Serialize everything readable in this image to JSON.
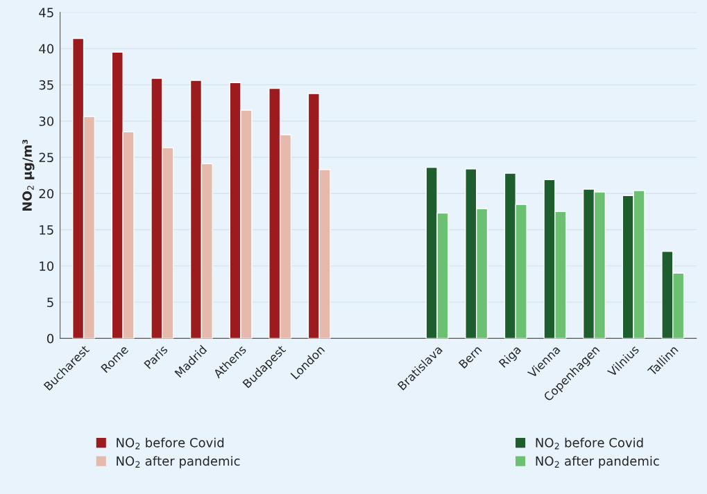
{
  "chart_data": {
    "type": "bar",
    "ylabel": "NO$_{2}$ µg/m³",
    "categories": [
      "Bucharest",
      "Rome",
      "Paris",
      "Madrid",
      "Athens",
      "Budapest",
      "London",
      null,
      null,
      "Bratislava",
      "Bern",
      "Riga",
      "Vienna",
      "Copenhagen",
      "Vilnius",
      "Tallinn"
    ],
    "series": [
      {
        "name": "NO$_{2}$ before Covid",
        "color": "#9b1b1f",
        "values": [
          41.4,
          39.5,
          35.9,
          35.6,
          35.3,
          34.5,
          33.8,
          null,
          null,
          null,
          null,
          null,
          null,
          null,
          null,
          null
        ]
      },
      {
        "name": "NO$_{2}$ after pandemic",
        "color": "#e6b9ad",
        "values": [
          30.6,
          28.5,
          26.3,
          24.1,
          31.5,
          28.1,
          23.3,
          null,
          null,
          null,
          null,
          null,
          null,
          null,
          null,
          null
        ]
      },
      {
        "name": "NO$_{2}$ before Covid",
        "color": "#1e5e2e",
        "values": [
          null,
          null,
          null,
          null,
          null,
          null,
          null,
          null,
          null,
          23.6,
          23.4,
          22.8,
          21.9,
          20.6,
          19.7,
          12.0
        ]
      },
      {
        "name": "NO$_{2}$ after pandemic",
        "color": "#6cc071",
        "values": [
          null,
          null,
          null,
          null,
          null,
          null,
          null,
          null,
          null,
          17.3,
          17.9,
          18.5,
          17.5,
          20.2,
          20.4,
          9.0
        ]
      }
    ],
    "ylim": [
      0,
      45
    ],
    "yticks": [
      0,
      5,
      10,
      15,
      20,
      25,
      30,
      35,
      40,
      45
    ],
    "grid": "y",
    "legend": "bottom"
  }
}
